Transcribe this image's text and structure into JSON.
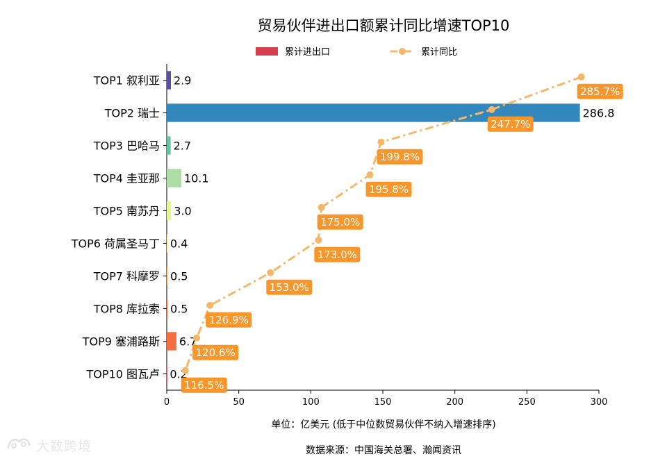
{
  "chart_data": {
    "type": "bar",
    "title": "贸易伙伴进出口额累计同比增速TOP10",
    "legend": {
      "position": "top-center",
      "bar_label": "累计进出口",
      "line_label": "累计同比"
    },
    "categories": [
      "TOP1 叙利亚",
      "TOP2 瑞士",
      "TOP3 巴哈马",
      "TOP4 圭亚那",
      "TOP5 南苏丹",
      "TOP6 荷属圣马丁",
      "TOP7 科摩罗",
      "TOP8 库拉索",
      "TOP9 塞浦路斯",
      "TOP10 图瓦卢"
    ],
    "bar_values": [
      2.9,
      286.8,
      2.7,
      10.1,
      3.0,
      0.4,
      0.5,
      0.5,
      6.7,
      0.2
    ],
    "bar_labels": [
      "2.9",
      "286.8",
      "2.7",
      "10.1",
      "3.0",
      "0.4",
      "0.5",
      "0.5",
      "6.7",
      "0.2"
    ],
    "bar_colors": [
      "#5e4fa2",
      "#3288bd",
      "#66c2a5",
      "#abdda4",
      "#e6f598",
      "#fee08b",
      "#fdae61",
      "#f46d43",
      "#f46d43",
      "#d53e4f"
    ],
    "legend_bar_color": "#d53e4f",
    "line_color": "#f4b86a",
    "label_box_color": "#f7962a",
    "growth_values": [
      285.7,
      247.7,
      199.8,
      195.8,
      175.0,
      173.0,
      153.0,
      126.9,
      120.6,
      116.5
    ],
    "growth_labels": [
      "285.7%",
      "247.7%",
      "199.8%",
      "195.8%",
      "175.0%",
      "173.0%",
      "153.0%",
      "126.9%",
      "120.6%",
      "116.5%"
    ],
    "growth_x_positions": [
      287.8,
      225.6,
      148.8,
      141.1,
      107.4,
      105.3,
      72.0,
      30.0,
      20.8,
      12.9
    ],
    "xlim": [
      0,
      300
    ],
    "xticks": [
      0,
      50,
      100,
      150,
      200,
      250,
      300
    ],
    "xtick_labels": [
      "0",
      "50",
      "100",
      "150",
      "200",
      "250",
      "300"
    ],
    "xlabel": "单位：亿美元 (低于中位数贸易伙伴不纳入增速排序)",
    "source": "数据来源：中国海关总署、瀚闻资讯"
  },
  "watermark": {
    "text": "大数跨境"
  }
}
